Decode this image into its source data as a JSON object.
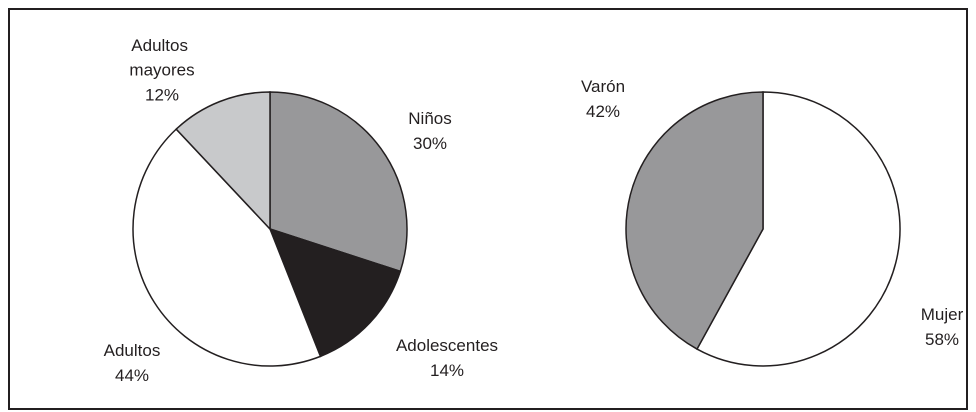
{
  "chart_data": [
    {
      "type": "pie",
      "categories": [
        "Niños",
        "Adolescentes",
        "Adultos",
        "Adultos mayores"
      ],
      "values": [
        30,
        14,
        44,
        12
      ],
      "value_labels": [
        "30%",
        "14%",
        "44%",
        "12%"
      ],
      "colors": [
        "#98989a",
        "#231f20",
        "#ffffff",
        "#c8c9cb"
      ]
    },
    {
      "type": "pie",
      "categories": [
        "Mujer",
        "Varón"
      ],
      "values": [
        58,
        42
      ],
      "value_labels": [
        "58%",
        "42%"
      ],
      "colors": [
        "#ffffff",
        "#98989a"
      ]
    }
  ]
}
